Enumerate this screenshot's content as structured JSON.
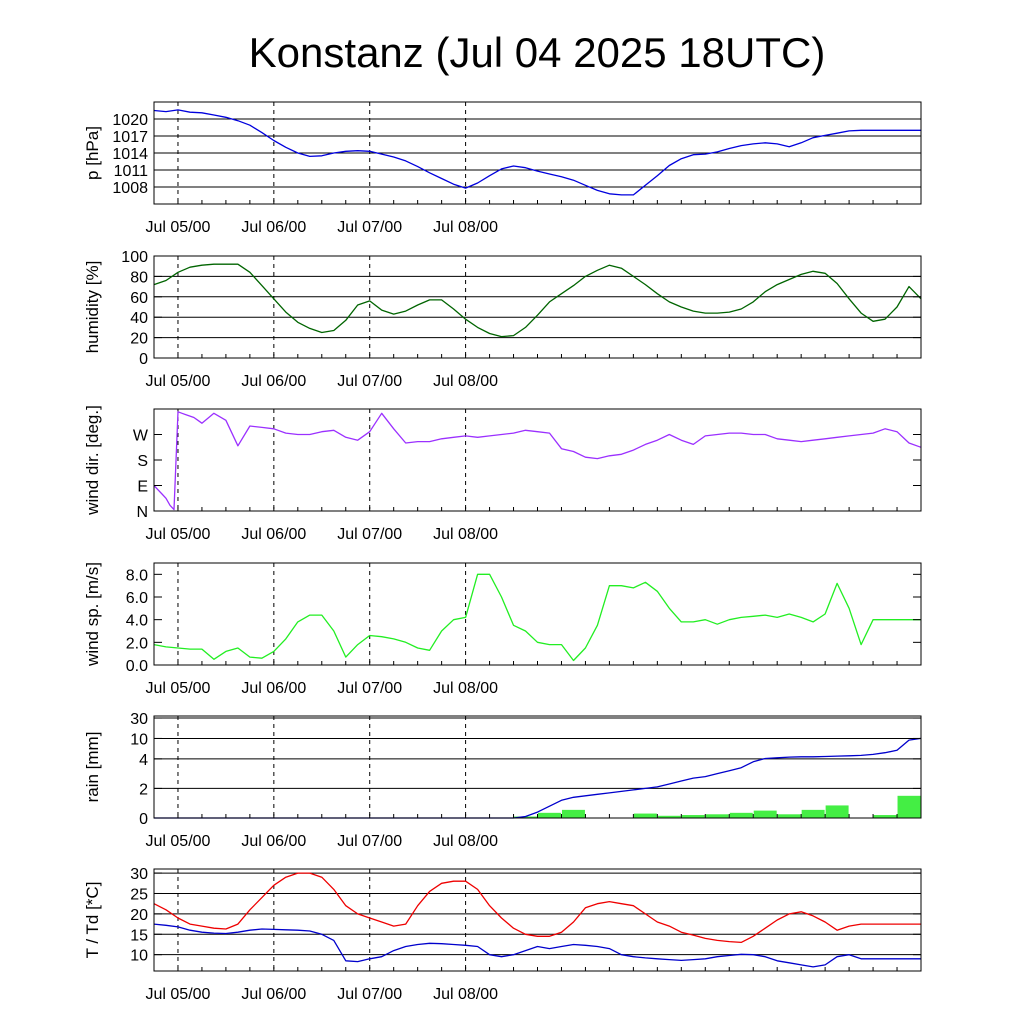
{
  "title": "Konstanz (Jul 04 2025 18UTC)",
  "date_labels": [
    "Jul 05/00",
    "Jul 06/00",
    "Jul 07/00",
    "Jul 08/00"
  ],
  "chart_data": [
    {
      "id": "pressure",
      "type": "line",
      "ylabel": "p [hPa]",
      "x_unit": "hours since Jul 04 18UTC",
      "ylim": [
        1005,
        1023
      ],
      "yticks": [
        1008,
        1011,
        1014,
        1017,
        1020
      ],
      "ytick_labels": [
        "1008",
        "1011",
        "1014",
        "1017",
        "1020"
      ],
      "grid": true,
      "series": [
        {
          "color": "#0000dd",
          "x": [
            0,
            3,
            6,
            9,
            12,
            15,
            18,
            21,
            24,
            27,
            30,
            33,
            36,
            39,
            42,
            45,
            48,
            51,
            54,
            57,
            60,
            63,
            66,
            69,
            72,
            75,
            78,
            81,
            84,
            87,
            90,
            93,
            96,
            99,
            102,
            105,
            108,
            111,
            114,
            117,
            120,
            123,
            126,
            129,
            132,
            135,
            138,
            141,
            144,
            147,
            150,
            153,
            156,
            159,
            162,
            165,
            168,
            171,
            174,
            177,
            180,
            183,
            186,
            189,
            192
          ],
          "values": [
            1021.5,
            1021.3,
            1021.6,
            1021.2,
            1021.1,
            1020.7,
            1020.3,
            1019.7,
            1018.9,
            1017.6,
            1016.2,
            1015,
            1014,
            1013.4,
            1013.5,
            1014,
            1014.3,
            1014.4,
            1014.3,
            1013.8,
            1013.3,
            1012.6,
            1011.6,
            1010.5,
            1009.5,
            1008.5,
            1007.8,
            1008.7,
            1010,
            1011.2,
            1011.7,
            1011.4,
            1010.8,
            1010.3,
            1009.8,
            1009.2,
            1008.3,
            1007.4,
            1006.8,
            1006.6,
            1006.6,
            1008.3,
            1010,
            1011.8,
            1013,
            1013.7,
            1013.8,
            1014.2,
            1014.8,
            1015.3,
            1015.6,
            1015.8,
            1015.6,
            1015.1,
            1015.8,
            1016.7,
            1017.1,
            1017.5,
            1017.9,
            1018,
            1018,
            1018,
            1018,
            1018,
            1018
          ]
        }
      ]
    },
    {
      "id": "humidity",
      "type": "line",
      "ylabel": "humidity [%]",
      "ylim": [
        0,
        100
      ],
      "yticks": [
        0,
        20,
        40,
        60,
        80,
        100
      ],
      "ytick_labels": [
        "0",
        "20",
        "40",
        "60",
        "80",
        "100"
      ],
      "grid": true,
      "series": [
        {
          "color": "#006400",
          "x": [
            0,
            3,
            6,
            9,
            12,
            15,
            18,
            21,
            24,
            27,
            30,
            33,
            36,
            39,
            42,
            45,
            48,
            51,
            54,
            57,
            60,
            63,
            66,
            69,
            72,
            75,
            78,
            81,
            84,
            87,
            90,
            93,
            96,
            99,
            102,
            105,
            108,
            111,
            114,
            117,
            120,
            123,
            126,
            129,
            132,
            135,
            138,
            141,
            144,
            147,
            150,
            153,
            156,
            159,
            162,
            165,
            168,
            171,
            174,
            177,
            180,
            183,
            186,
            189,
            192
          ],
          "values": [
            72,
            76,
            84,
            89,
            91,
            92,
            92,
            92,
            84,
            71,
            58,
            45,
            35,
            29,
            25,
            27,
            37,
            52,
            56,
            47,
            43,
            46,
            52,
            57,
            57,
            48,
            38,
            30,
            24,
            21,
            22,
            30,
            42,
            55,
            63,
            71,
            80,
            86,
            91,
            88,
            80,
            72,
            63,
            55,
            50,
            46,
            44,
            44,
            45,
            48,
            55,
            65,
            72,
            77,
            82,
            85,
            83,
            73,
            58,
            44,
            36,
            38,
            50,
            70,
            58
          ]
        }
      ]
    },
    {
      "id": "wind_direction",
      "type": "line",
      "ylabel": "wind dir. [deg.]",
      "ylim": [
        0,
        360
      ],
      "yticks": [
        0,
        90,
        180,
        270
      ],
      "ytick_labels": [
        "N",
        "E",
        "S",
        "W"
      ],
      "grid": false,
      "series": [
        {
          "color": "#9b30ff",
          "x": [
            0,
            1,
            2,
            3,
            4,
            5,
            6,
            7,
            8,
            9,
            10,
            11,
            12,
            15,
            18,
            21,
            24,
            27,
            30,
            33,
            36,
            39,
            42,
            45,
            48,
            51,
            54,
            57,
            60,
            63,
            66,
            69,
            72,
            75,
            78,
            81,
            84,
            87,
            90,
            93,
            96,
            99,
            102,
            105,
            108,
            111,
            114,
            117,
            120,
            123,
            126,
            129,
            132,
            135,
            138,
            141,
            144,
            147,
            150,
            153,
            156,
            159,
            162,
            165,
            168,
            171,
            174,
            177,
            180,
            183,
            186,
            189,
            192
          ],
          "values": [
            90,
            75,
            60,
            45,
            20,
            5,
            350,
            345,
            340,
            335,
            330,
            320,
            310,
            345,
            320,
            230,
            300,
            295,
            290,
            275,
            270,
            270,
            280,
            285,
            260,
            250,
            280,
            345,
            290,
            240,
            245,
            245,
            255,
            260,
            265,
            260,
            265,
            270,
            275,
            285,
            280,
            275,
            220,
            210,
            190,
            185,
            195,
            200,
            215,
            235,
            250,
            270,
            250,
            235,
            265,
            270,
            275,
            275,
            270,
            270,
            255,
            250,
            245,
            250,
            255,
            260,
            265,
            270,
            275,
            290,
            280,
            240,
            225
          ]
        }
      ]
    },
    {
      "id": "wind_speed",
      "type": "line",
      "ylabel": "wind sp. [m/s]",
      "ylim": [
        0,
        9
      ],
      "yticks": [
        0,
        2,
        4,
        6,
        8
      ],
      "ytick_labels": [
        "0.0",
        "2.0",
        "4.0",
        "6.0",
        "8.0"
      ],
      "grid": false,
      "series": [
        {
          "color": "#22ee22",
          "x": [
            0,
            3,
            6,
            9,
            12,
            15,
            18,
            21,
            24,
            27,
            30,
            33,
            36,
            39,
            42,
            45,
            48,
            51,
            54,
            57,
            60,
            63,
            66,
            69,
            72,
            75,
            78,
            81,
            84,
            87,
            90,
            93,
            96,
            99,
            102,
            105,
            108,
            111,
            114,
            117,
            120,
            123,
            126,
            129,
            132,
            135,
            138,
            141,
            144,
            147,
            150,
            153,
            156,
            159,
            162,
            165,
            168,
            171,
            174,
            177,
            180,
            183,
            186,
            189,
            192
          ],
          "values": [
            1.8,
            1.6,
            1.5,
            1.4,
            1.4,
            0.5,
            1.2,
            1.5,
            0.7,
            0.6,
            1.2,
            2.3,
            3.8,
            4.4,
            4.4,
            3.0,
            0.7,
            1.8,
            2.6,
            2.5,
            2.3,
            2.0,
            1.5,
            1.3,
            3.0,
            4.0,
            4.2,
            8.0,
            8.0,
            6.0,
            3.5,
            3.0,
            2.0,
            1.8,
            1.8,
            0.4,
            1.5,
            3.5,
            7.0,
            7.0,
            6.8,
            7.3,
            6.5,
            5.0,
            3.8,
            3.8,
            4.0,
            3.6,
            4.0,
            4.2,
            4.3,
            4.4,
            4.2,
            4.5,
            4.2,
            3.8,
            4.5,
            7.2,
            5.0,
            1.8,
            4.0,
            4.0,
            4.0,
            4.0,
            4.0
          ]
        }
      ]
    },
    {
      "id": "rain",
      "type": "bar",
      "ylabel": "rain [mm]",
      "ylim": [
        0,
        30
      ],
      "yticks": [
        0,
        2,
        4,
        10,
        30
      ],
      "ytick_labels": [
        "0",
        "2",
        "4",
        "10",
        "30"
      ],
      "grid": true,
      "bars": {
        "color": "#44ee44",
        "x": [
          93,
          99,
          105,
          123,
          129,
          135,
          141,
          147,
          153,
          159,
          165,
          171,
          183,
          189
        ],
        "values": [
          0.1,
          0.35,
          0.55,
          0.3,
          0.15,
          0.2,
          0.25,
          0.35,
          0.5,
          0.25,
          0.55,
          0.85,
          0.2,
          1.5
        ]
      },
      "series": [
        {
          "color": "#0000cc",
          "x": [
            0,
            3,
            6,
            9,
            12,
            15,
            18,
            21,
            24,
            27,
            30,
            33,
            36,
            39,
            42,
            45,
            48,
            51,
            54,
            57,
            60,
            63,
            66,
            69,
            72,
            75,
            78,
            81,
            84,
            87,
            90,
            93,
            96,
            99,
            102,
            105,
            108,
            111,
            114,
            117,
            120,
            123,
            126,
            129,
            132,
            135,
            138,
            141,
            144,
            147,
            150,
            153,
            156,
            159,
            162,
            165,
            168,
            171,
            174,
            177,
            180,
            183,
            186,
            189,
            192
          ],
          "values": [
            0,
            0,
            0,
            0,
            0,
            0,
            0,
            0,
            0,
            0,
            0,
            0,
            0,
            0,
            0,
            0,
            0,
            0,
            0,
            0,
            0,
            0,
            0,
            0,
            0,
            0,
            0,
            0,
            0,
            0,
            0,
            0.1,
            0.4,
            0.8,
            1.2,
            1.4,
            1.5,
            1.6,
            1.7,
            1.8,
            1.9,
            2.0,
            2.1,
            2.3,
            2.5,
            2.7,
            2.8,
            3.0,
            3.2,
            3.4,
            3.8,
            4.1,
            4.3,
            4.5,
            4.6,
            4.6,
            4.7,
            4.8,
            4.9,
            5.0,
            5.3,
            5.8,
            6.5,
            9.5,
            10
          ]
        }
      ]
    },
    {
      "id": "temperature",
      "type": "line",
      "ylabel": "T / Td [*C]",
      "ylim": [
        6,
        31
      ],
      "yticks": [
        10,
        15,
        20,
        25,
        30
      ],
      "ytick_labels": [
        "10",
        "15",
        "20",
        "25",
        "30"
      ],
      "grid": true,
      "series": [
        {
          "color": "#ee0000",
          "x": [
            0,
            3,
            6,
            9,
            12,
            15,
            18,
            21,
            24,
            27,
            30,
            33,
            36,
            39,
            42,
            45,
            48,
            51,
            54,
            57,
            60,
            63,
            66,
            69,
            72,
            75,
            78,
            81,
            84,
            87,
            90,
            93,
            96,
            99,
            102,
            105,
            108,
            111,
            114,
            117,
            120,
            123,
            126,
            129,
            132,
            135,
            138,
            141,
            144,
            147,
            150,
            153,
            156,
            159,
            162,
            165,
            168,
            171,
            174,
            177,
            180,
            183,
            186,
            189,
            192
          ],
          "values": [
            22.5,
            21,
            19,
            17.5,
            17,
            16.5,
            16.3,
            17.5,
            21,
            24,
            27,
            29,
            30,
            30,
            29,
            26,
            22,
            20,
            19,
            18,
            17,
            17.5,
            22,
            25.5,
            27.5,
            28,
            28,
            26,
            22,
            19,
            16.5,
            15,
            14.5,
            14.5,
            15.5,
            18,
            21.5,
            22.5,
            23,
            22.5,
            22,
            20,
            18,
            17,
            15.5,
            14.8,
            14,
            13.5,
            13.2,
            13,
            14.5,
            16.5,
            18.5,
            20,
            20.5,
            19.5,
            18,
            16,
            17,
            17.5,
            17.5,
            17.5,
            17.5,
            17.5,
            17.5
          ]
        },
        {
          "color": "#0000cc",
          "x": [
            0,
            3,
            6,
            9,
            12,
            15,
            18,
            21,
            24,
            27,
            30,
            33,
            36,
            39,
            42,
            45,
            48,
            51,
            54,
            57,
            60,
            63,
            66,
            69,
            72,
            75,
            78,
            81,
            84,
            87,
            90,
            93,
            96,
            99,
            102,
            105,
            108,
            111,
            114,
            117,
            120,
            123,
            126,
            129,
            132,
            135,
            138,
            141,
            144,
            147,
            150,
            153,
            156,
            159,
            162,
            165,
            168,
            171,
            174,
            177,
            180,
            183,
            186,
            189,
            192
          ],
          "values": [
            17.5,
            17.2,
            16.8,
            16,
            15.5,
            15.3,
            15.2,
            15.5,
            16,
            16.3,
            16.2,
            16.1,
            16,
            15.8,
            15,
            13.5,
            8.5,
            8.3,
            9,
            9.5,
            11,
            12,
            12.5,
            12.8,
            12.7,
            12.5,
            12.3,
            12,
            10,
            9.5,
            10,
            11,
            12,
            11.5,
            12,
            12.5,
            12.3,
            12,
            11.5,
            10,
            9.5,
            9.2,
            9,
            8.8,
            8.6,
            8.8,
            9,
            9.5,
            9.8,
            10.1,
            10,
            9.5,
            8.5,
            8,
            7.5,
            7,
            7.5,
            9.5,
            10,
            9,
            9,
            9,
            9,
            9,
            9
          ]
        }
      ]
    }
  ]
}
